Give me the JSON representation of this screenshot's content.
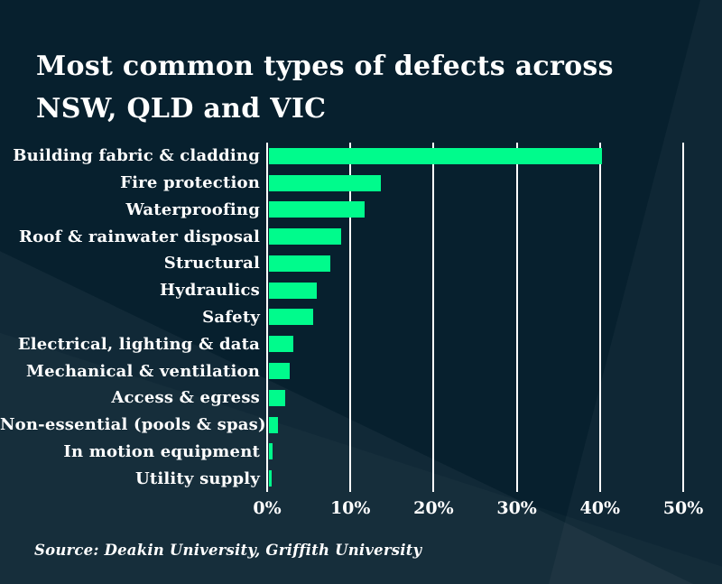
{
  "title": {
    "line1": "Most common types of defects across",
    "line2": "NSW, QLD and VIC"
  },
  "source": "Source: Deakin University, Griffith University",
  "colors": {
    "background": "#07202e",
    "bar": "#00fb8c",
    "text": "#ffffff",
    "gridline": "#ffffff"
  },
  "chart_data": {
    "type": "bar",
    "orientation": "horizontal",
    "title": "Most common types of defects across NSW, QLD and VIC",
    "categories": [
      "Building fabric & cladding",
      "Fire protection",
      "Waterproofing",
      "Roof & rainwater disposal",
      "Structural",
      "Hydraulics",
      "Safety",
      "Electrical, lighting & data",
      "Mechanical & ventilation",
      "Access & egress",
      "Non-essential (pools & spas)",
      "In motion equipment",
      "Utility supply"
    ],
    "values": [
      40,
      13.4,
      11.5,
      8.7,
      7.4,
      5.7,
      5.3,
      2.9,
      2.5,
      1.9,
      1.1,
      0.4,
      0.3
    ],
    "unit": "%",
    "xlim": [
      0,
      50
    ],
    "x_ticks": [
      {
        "value": 0,
        "label": "0%"
      },
      {
        "value": 10,
        "label": "10%"
      },
      {
        "value": 20,
        "label": "20%"
      },
      {
        "value": 30,
        "label": "30%"
      },
      {
        "value": 40,
        "label": "40%"
      },
      {
        "value": 50,
        "label": "50%"
      }
    ],
    "grid": true,
    "legend": false
  }
}
